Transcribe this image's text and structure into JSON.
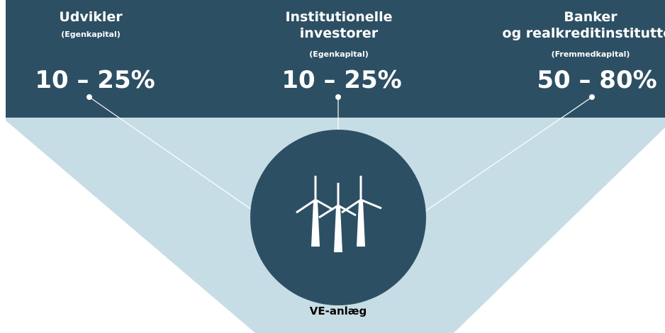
{
  "groups": [
    {
      "title": "Udvikler",
      "subtitle": "(Egenkapital)",
      "share": "10 – 25%"
    },
    {
      "title": "Institutionelle investorer",
      "subtitle": "(Egenkapital)",
      "share": "10 – 25%"
    },
    {
      "title": "Banker og realkreditinstitutter",
      "subtitle": "(Fremmedkapital)",
      "share": "50 – 80%"
    }
  ],
  "center": {
    "label": "VE-anlæg"
  }
}
